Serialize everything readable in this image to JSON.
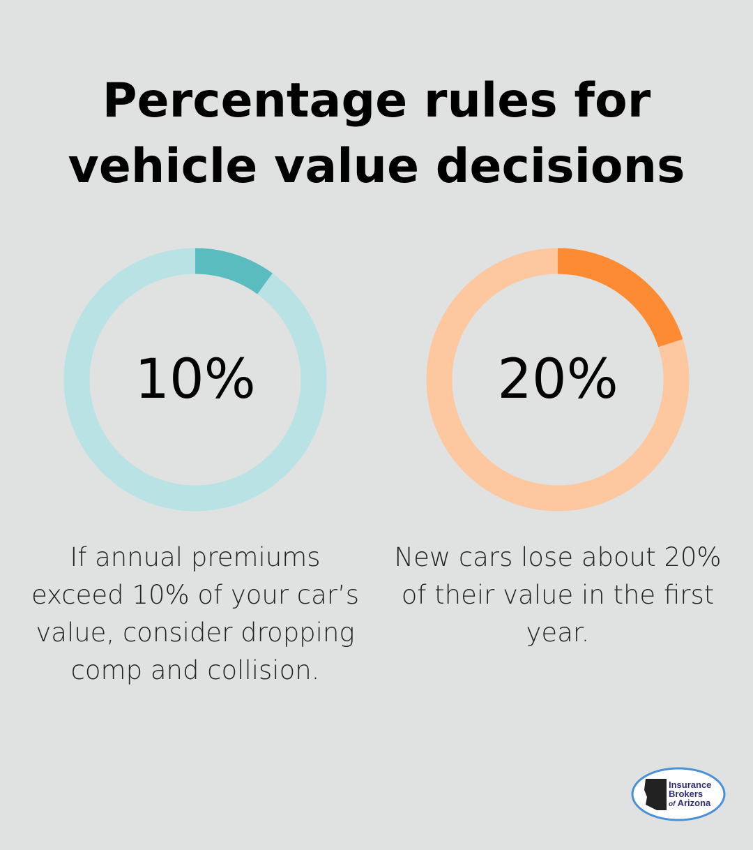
{
  "title": "Percentage rules for vehicle value decisions",
  "chart_data": [
    {
      "type": "pie",
      "variant": "donut",
      "value": 10,
      "max": 100,
      "label": "10%",
      "description": "If annual premiums exceed 10% of your car’s value, consider dropping comp and collision.",
      "colors": {
        "fill": "#5bbcc0",
        "track": "#b8e2e3"
      }
    },
    {
      "type": "pie",
      "variant": "donut",
      "value": 20,
      "max": 100,
      "label": "20%",
      "description": "New cars lose about 20% of their value in the first year.",
      "colors": {
        "fill": "#fd8b33",
        "track": "#fdc89f"
      }
    }
  ],
  "logo": {
    "line1": "Insurance",
    "line2": "Brokers",
    "line3_a": "of",
    "line3_b": "Arizona",
    "text_color": "#2e2f7a",
    "ring_color": "#4a90d9"
  }
}
